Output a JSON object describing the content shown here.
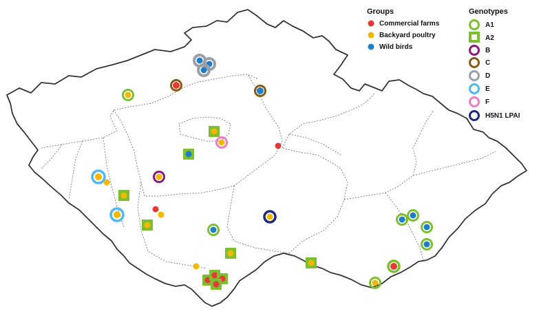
{
  "legend": {
    "groups_title": "Groups",
    "groups": [
      {
        "key": "commercial",
        "label": "Commercial farms",
        "color": "#e53935"
      },
      {
        "key": "backyard",
        "label": "Backyard poultry",
        "color": "#f5b800"
      },
      {
        "key": "wild",
        "label": "Wild birds",
        "color": "#1e7fc8"
      }
    ],
    "genotypes_title": "Genotypes",
    "genotypes": [
      {
        "key": "A1",
        "label": "A1",
        "color": "#7cbf2f",
        "shape": "ring"
      },
      {
        "key": "A2",
        "label": "A2",
        "color": "#7cbf2f",
        "shape": "square"
      },
      {
        "key": "B",
        "label": "B",
        "color": "#8b1a7e",
        "shape": "ring"
      },
      {
        "key": "C",
        "label": "C",
        "color": "#8a5a12",
        "shape": "ring"
      },
      {
        "key": "D",
        "label": "D",
        "color": "#9aa0a6",
        "shape": "ring"
      },
      {
        "key": "E",
        "label": "E",
        "color": "#4fb8f0",
        "shape": "ring"
      },
      {
        "key": "F",
        "label": "F",
        "color": "#f07cc8",
        "shape": "ring"
      },
      {
        "key": "H5N1LPAI",
        "label": "H5N1 LPAI",
        "color": "#1b2a7a",
        "shape": "ring"
      }
    ]
  }
}
